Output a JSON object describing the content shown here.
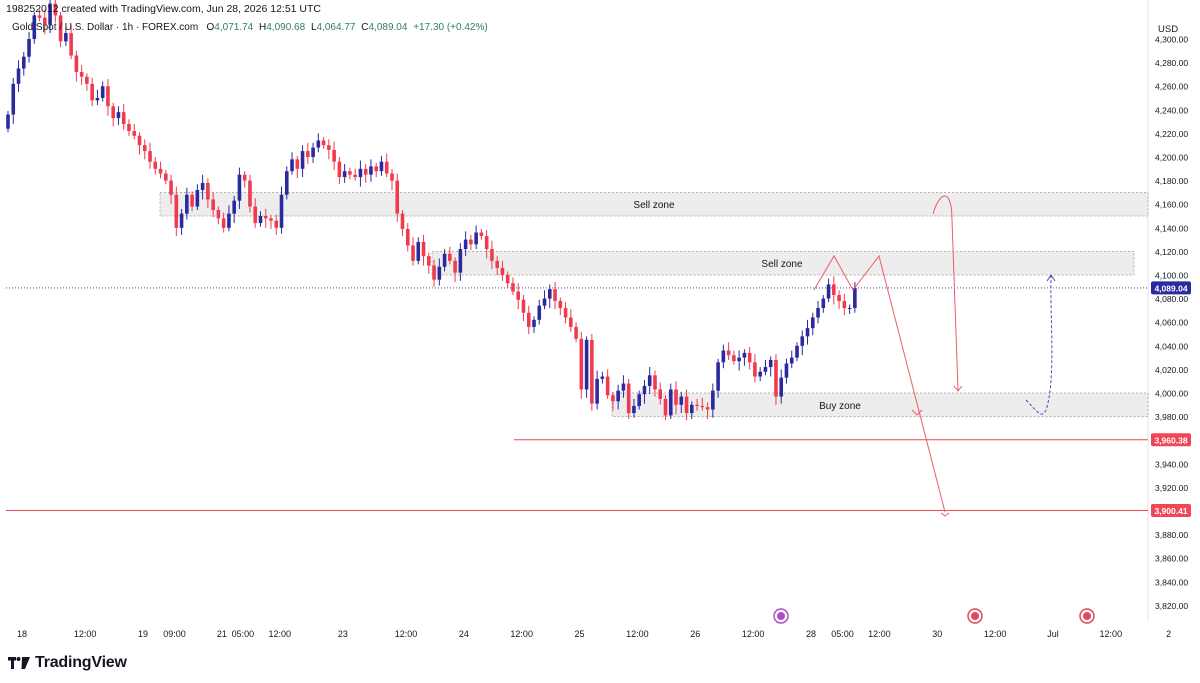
{
  "header": {
    "created": "198252012 created with TradingView.com, Jun 28, 2026 12:51 UTC"
  },
  "symbol": {
    "name": "Gold Spot / U.S. Dollar · 1h · FOREX.com",
    "o_label": "O",
    "o_value": "4,071.74",
    "h_label": "H",
    "h_value": "4,090.68",
    "l_label": "L",
    "l_value": "4,064.77",
    "c_label": "C",
    "c_value": "4,089.04",
    "change": "+17.30 (+0.42%)"
  },
  "axis": {
    "currency": "USD"
  },
  "footer": {
    "brand": "TradingView"
  },
  "colors": {
    "up": "#2a2a9e",
    "down": "#f03a4e",
    "zone_fill": "#ededed",
    "zone_stroke": "#9e9e9e",
    "red_line": "#f04658",
    "current_price_badge": "#2a2a9e",
    "projection": "#f05a68",
    "projection_dashed": "#4a4ab8"
  },
  "chart_data": {
    "type": "candlestick",
    "symbol": "Gold Spot / U.S. Dollar",
    "timeframe": "1h",
    "ylim": [
      3800,
      4320
    ],
    "y_ticks": [
      "4,300.00",
      "4,280.00",
      "4,260.00",
      "4,240.00",
      "4,220.00",
      "4,200.00",
      "4,180.00",
      "4,160.00",
      "4,140.00",
      "4,120.00",
      "4,100.00",
      "4,080.00",
      "4,060.00",
      "4,040.00",
      "4,020.00",
      "4,000.00",
      "3,980.00",
      "3,960.00",
      "3,940.00",
      "3,920.00",
      "3,900.00",
      "3,880.00",
      "3,860.00",
      "3,840.00",
      "3,820.00"
    ],
    "y_tick_values": [
      4300,
      4280,
      4260,
      4240,
      4220,
      4200,
      4180,
      4160,
      4140,
      4120,
      4100,
      4080,
      4060,
      4040,
      4020,
      4000,
      3980,
      3960,
      3940,
      3920,
      3900,
      3880,
      3860,
      3840,
      3820
    ],
    "x_ticks": [
      {
        "label": "18",
        "bar": 0
      },
      {
        "label": "12:00",
        "bar": 12
      },
      {
        "label": "19",
        "bar": 23
      },
      {
        "label": "09:00",
        "bar": 29
      },
      {
        "label": "21",
        "bar": 38
      },
      {
        "label": "05:00",
        "bar": 42
      },
      {
        "label": "12:00",
        "bar": 49
      },
      {
        "label": "23",
        "bar": 61
      },
      {
        "label": "12:00",
        "bar": 73
      },
      {
        "label": "24",
        "bar": 84
      },
      {
        "label": "12:00",
        "bar": 95
      },
      {
        "label": "25",
        "bar": 106
      },
      {
        "label": "12:00",
        "bar": 117
      },
      {
        "label": "26",
        "bar": 128
      },
      {
        "label": "12:00",
        "bar": 139
      },
      {
        "label": "28",
        "bar": 150
      },
      {
        "label": "05:00",
        "bar": 156
      },
      {
        "label": "12:00",
        "bar": 163
      },
      {
        "label": "30",
        "bar": 174
      },
      {
        "label": "12:00",
        "bar": 185
      },
      {
        "label": "Jul",
        "bar": 196
      },
      {
        "label": "12:00",
        "bar": 207
      },
      {
        "label": "2",
        "bar": 218
      }
    ],
    "zones": [
      {
        "label": "Sell zone",
        "from": 4150,
        "to": 4170
      },
      {
        "label": "Sell zone",
        "from": 4100,
        "to": 4120
      },
      {
        "label": "Buy zone",
        "from": 3980,
        "to": 4000
      }
    ],
    "levels": [
      {
        "value": 3960.38,
        "label": "3,960.38"
      },
      {
        "value": 3900.41,
        "label": "3,900.41"
      }
    ],
    "current_price": {
      "value": 4089.04,
      "label": "4,089.04"
    },
    "closes": [
      4236,
      4262,
      4275,
      4285,
      4300,
      4320,
      4318,
      4312,
      4330,
      4320,
      4298,
      4305,
      4286,
      4272,
      4268,
      4262,
      4248,
      4250,
      4260,
      4243,
      4233,
      4238,
      4228,
      4222,
      4218,
      4210,
      4205,
      4196,
      4190,
      4186,
      4180,
      4168,
      4140,
      4152,
      4168,
      4158,
      4172,
      4178,
      4164,
      4155,
      4148,
      4140,
      4152,
      4163,
      4185,
      4180,
      4158,
      4144,
      4150,
      4148,
      4146,
      4140,
      4168,
      4188,
      4198,
      4190,
      4205,
      4200,
      4208,
      4214,
      4210,
      4206,
      4196,
      4183,
      4188,
      4185,
      4183,
      4190,
      4185,
      4192,
      4188,
      4196,
      4186,
      4180,
      4152,
      4139,
      4125,
      4112,
      4128,
      4116,
      4108,
      4096,
      4107,
      4118,
      4112,
      4102,
      4122,
      4130,
      4126,
      4136,
      4133,
      4122,
      4112,
      4106,
      4100,
      4093,
      4086,
      4079,
      4068,
      4056,
      4062,
      4074,
      4080,
      4088,
      4078,
      4072,
      4064,
      4056,
      4046,
      4003,
      4045,
      3991,
      4012,
      4014,
      3998,
      3993,
      4002,
      4008,
      3983,
      3989,
      3999,
      4006,
      4015,
      4003,
      3995,
      3981,
      4003,
      3990,
      3997,
      3983,
      3990,
      3989,
      3988,
      3986,
      4002,
      4026,
      4036,
      4032,
      4027,
      4030,
      4034,
      4026,
      4014,
      4018,
      4022,
      4028,
      3997,
      4013,
      4025,
      4030,
      4040,
      4048,
      4055,
      4064,
      4072,
      4080,
      4092,
      4083,
      4078,
      4072,
      4072,
      4089
    ]
  }
}
